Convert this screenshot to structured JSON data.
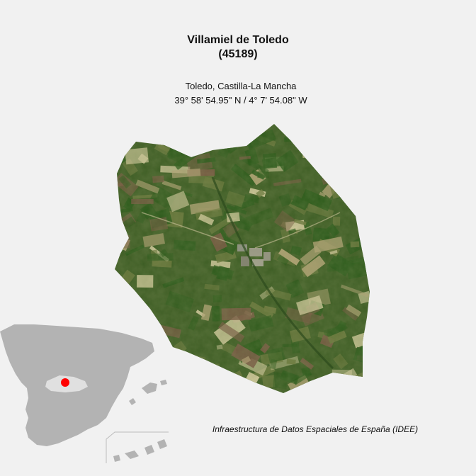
{
  "map": {
    "municipality_name": "Villamiel de Toledo",
    "municipality_code": "(45189)",
    "region": "Toledo, Castilla-La Mancha",
    "coordinates": "39° 58' 54.95\" N / 4° 7' 54.08\" W",
    "source_credit": "Infraestructura de Datos Espaciales de España (IDEE)",
    "imagery_colors": {
      "base": "#3e5e25",
      "dark_green": "#2a5a1a",
      "olive": "#6c7a3e",
      "brown": "#7a5a45",
      "tan": "#b7a77a",
      "light": "#d8cfa3"
    },
    "inset": {
      "country_color": "#b3b3b3",
      "province_color": "#e0e0e0",
      "marker_color": "#ff0000"
    }
  }
}
